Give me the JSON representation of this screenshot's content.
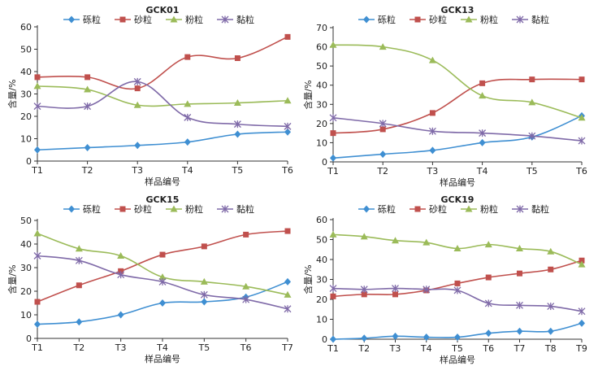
{
  "chart_data": [
    {
      "type": "line",
      "title": "GCK01",
      "xlabel": "样品编号",
      "ylabel": "含量/%",
      "ylim": [
        0,
        60
      ],
      "yticks": [
        0,
        10,
        20,
        30,
        40,
        50,
        60
      ],
      "categories": [
        "T1",
        "T2",
        "T3",
        "T4",
        "T5",
        "T6"
      ],
      "legend_position": "top",
      "grid": false,
      "series": [
        {
          "name": "砾粒",
          "color": "#3f8fd2",
          "marker": "diamond",
          "values": [
            5,
            6,
            7,
            8.5,
            12,
            13
          ]
        },
        {
          "name": "砂粒",
          "color": "#c0504d",
          "marker": "square",
          "values": [
            37.5,
            37.5,
            32.5,
            46.5,
            46,
            55.5
          ]
        },
        {
          "name": "粉粒",
          "color": "#9bbb59",
          "marker": "triangle",
          "values": [
            33.5,
            32,
            25,
            25.5,
            26,
            27
          ]
        },
        {
          "name": "黏粒",
          "color": "#7f6aa8",
          "marker": "star",
          "values": [
            24.5,
            24.5,
            35.5,
            19.5,
            16.5,
            15.5
          ]
        }
      ]
    },
    {
      "type": "line",
      "title": "GCK13",
      "xlabel": "样品编号",
      "ylabel": "含量/%",
      "ylim": [
        0,
        70
      ],
      "yticks": [
        0,
        10,
        20,
        30,
        40,
        50,
        60,
        70
      ],
      "categories": [
        "T1",
        "T2",
        "T3",
        "T4",
        "T5",
        "T6"
      ],
      "legend_position": "top",
      "grid": false,
      "series": [
        {
          "name": "砾粒",
          "color": "#3f8fd2",
          "marker": "diamond",
          "values": [
            2,
            4,
            6,
            10,
            13,
            24
          ]
        },
        {
          "name": "砂粒",
          "color": "#c0504d",
          "marker": "square",
          "values": [
            15,
            17,
            25.5,
            41,
            43,
            43
          ]
        },
        {
          "name": "粉粒",
          "color": "#9bbb59",
          "marker": "triangle",
          "values": [
            61,
            60,
            53,
            34.5,
            31,
            23
          ]
        },
        {
          "name": "黏粒",
          "color": "#7f6aa8",
          "marker": "star",
          "values": [
            23,
            20,
            16,
            15,
            13.5,
            11
          ]
        }
      ]
    },
    {
      "type": "line",
      "title": "GCK15",
      "xlabel": "样品编号",
      "ylabel": "含量/%",
      "ylim": [
        0,
        50
      ],
      "yticks": [
        0,
        10,
        20,
        30,
        40,
        50
      ],
      "categories": [
        "T1",
        "T2",
        "T3",
        "T4",
        "T5",
        "T6",
        "T7"
      ],
      "legend_position": "top",
      "grid": false,
      "series": [
        {
          "name": "砾粒",
          "color": "#3f8fd2",
          "marker": "diamond",
          "values": [
            6,
            7,
            10,
            15,
            15.5,
            17.5,
            24
          ]
        },
        {
          "name": "砂粒",
          "color": "#c0504d",
          "marker": "square",
          "values": [
            15.5,
            22.5,
            28.5,
            35.5,
            39,
            44,
            45.5
          ]
        },
        {
          "name": "粉粒",
          "color": "#9bbb59",
          "marker": "triangle",
          "values": [
            44.5,
            38,
            35,
            26,
            24,
            22,
            18.5
          ]
        },
        {
          "name": "黏粒",
          "color": "#7f6aa8",
          "marker": "star",
          "values": [
            35,
            33,
            27,
            24,
            18.5,
            16.5,
            12.5
          ]
        }
      ]
    },
    {
      "type": "line",
      "title": "GCK19",
      "xlabel": "样品编号",
      "ylabel": "含量/%",
      "ylim": [
        0,
        60
      ],
      "yticks": [
        0,
        10,
        20,
        30,
        40,
        50,
        60
      ],
      "categories": [
        "T1",
        "T2",
        "T3",
        "T4",
        "T5",
        "T6",
        "T7",
        "T8",
        "T9"
      ],
      "legend_position": "top",
      "grid": false,
      "series": [
        {
          "name": "砾粒",
          "color": "#3f8fd2",
          "marker": "diamond",
          "values": [
            0,
            0.5,
            1.5,
            1,
            1,
            3,
            4,
            4,
            8
          ]
        },
        {
          "name": "砂粒",
          "color": "#c0504d",
          "marker": "square",
          "values": [
            21.5,
            22.5,
            22.5,
            24.5,
            28,
            31,
            33,
            35,
            39.5
          ]
        },
        {
          "name": "粉粒",
          "color": "#9bbb59",
          "marker": "triangle",
          "values": [
            52.5,
            51.5,
            49.5,
            48.5,
            45.5,
            47.5,
            45.5,
            44,
            37.5
          ]
        },
        {
          "name": "黏粒",
          "color": "#7f6aa8",
          "marker": "star",
          "values": [
            25.5,
            25,
            25.5,
            25,
            24.5,
            18,
            17,
            16.5,
            14
          ]
        }
      ]
    }
  ]
}
